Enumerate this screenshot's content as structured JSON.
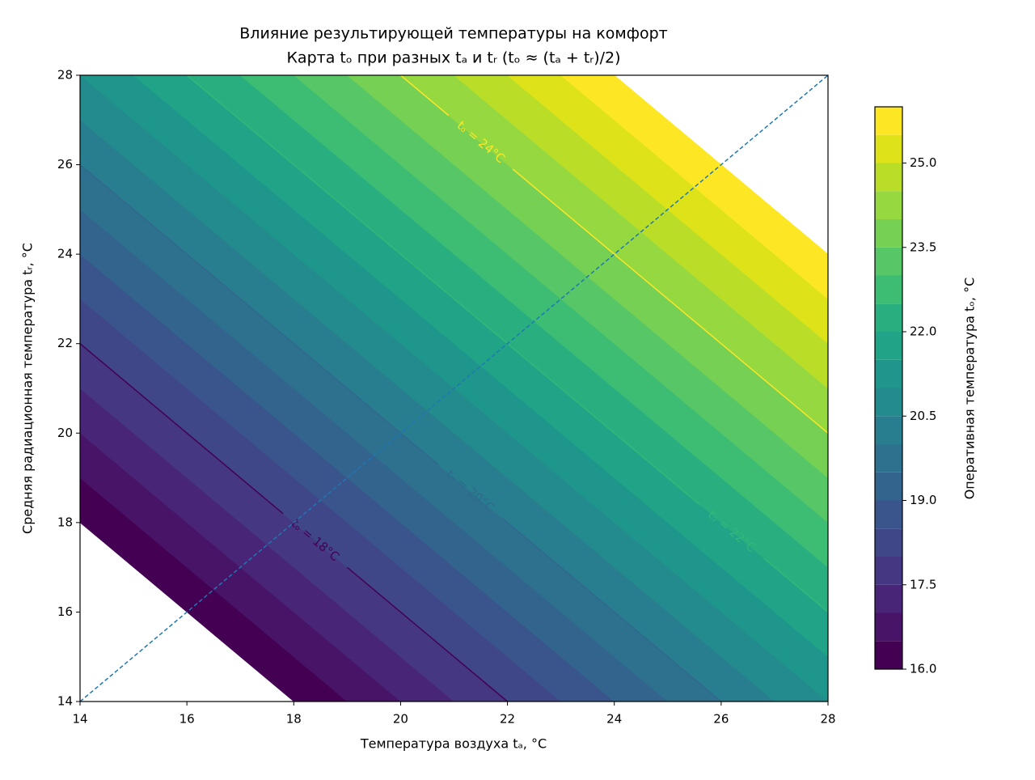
{
  "chart_data": {
    "type": "contourf",
    "title": "Влияние результирующей температуры на комфорт",
    "subtitle": "Карта tₒ при разных tₐ и tᵣ (tₒ ≈ (tₐ + tᵣ)/2)",
    "x_label": "Температура воздуха tₐ, °C",
    "y_label": "Средняя радиационная температура tᵣ, °C",
    "colorbar_label": "Оперативная температура tₒ, °C",
    "xlim": [
      14,
      28
    ],
    "ylim": [
      14,
      28
    ],
    "xticks": [
      14,
      16,
      18,
      20,
      22,
      24,
      26,
      28
    ],
    "yticks": [
      14,
      16,
      18,
      20,
      22,
      24,
      26,
      28
    ],
    "levels": [
      16,
      16.5,
      17,
      17.5,
      18,
      18.5,
      19,
      19.5,
      20,
      20.5,
      21,
      21.5,
      22,
      22.5,
      23,
      23.5,
      24,
      24.5,
      25,
      25.5,
      26
    ],
    "colors": [
      "#440154",
      "#481467",
      "#482576",
      "#453781",
      "#3f4788",
      "#39558c",
      "#32648e",
      "#2d718e",
      "#287d8e",
      "#238a8d",
      "#1f968b",
      "#20a386",
      "#29af7f",
      "#3dbc74",
      "#56c667",
      "#75d054",
      "#95d840",
      "#bade28",
      "#dde318",
      "#fde725"
    ],
    "colorbar_lim": [
      16,
      26
    ],
    "colorbar_ticks": [
      {
        "value": 16,
        "label": "16.0"
      },
      17.5,
      {
        "value": 19,
        "label": "19.0"
      },
      20.5,
      {
        "value": 22,
        "label": "22.0"
      },
      23.5,
      {
        "value": 25,
        "label": "25.0"
      }
    ],
    "contour_lines": [
      {
        "level": 18,
        "label": "tₒ = 18°C",
        "color": "#440154"
      },
      {
        "level": 20,
        "label": "tₒ = 20°C",
        "color": "#31688e"
      },
      {
        "level": 22,
        "label": "tₒ = 22°C",
        "color": "#35b779"
      },
      {
        "level": 24,
        "label": "tₒ = 24°C",
        "color": "#fde725"
      }
    ],
    "diagonal": {
      "color": "#1f77b4",
      "dashed": true
    }
  }
}
